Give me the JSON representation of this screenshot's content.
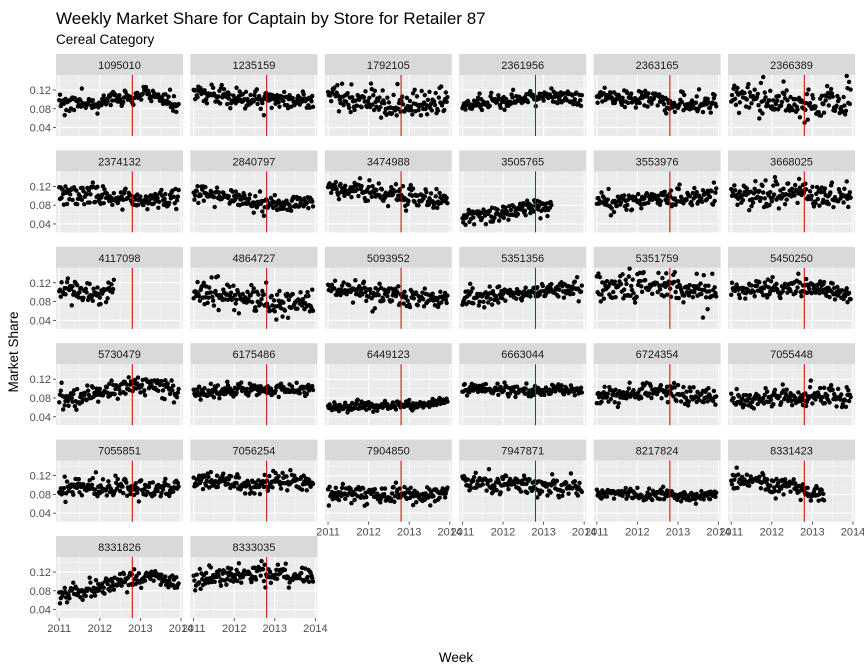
{
  "chart_data": {
    "type": "scatter",
    "title": "Weekly Market Share for Captain by Store for Retailer 87",
    "subtitle": "Cereal Category",
    "xlabel": "Week",
    "ylabel": "Market Share",
    "x_ticks": [
      "2011",
      "2012",
      "2013",
      "2014"
    ],
    "y_ticks": [
      "0.04",
      "0.08",
      "0.12"
    ],
    "xlim": [
      2010.92,
      2014.05
    ],
    "ylim": [
      0.022,
      0.152
    ],
    "vline_x": 2012.8,
    "point_color": "#000000",
    "vline_color": "#cc0000",
    "panel_bg": "#ebebeb",
    "strip_bg": "#d9d9d9",
    "grid": true,
    "ncol": 6,
    "panels": [
      {
        "store": "1095010",
        "trend": [
          0.095,
          0.092,
          0.1,
          0.112,
          0.085
        ],
        "noise": 0.009,
        "end": 2013.95
      },
      {
        "store": "1235159",
        "trend": [
          0.118,
          0.108,
          0.1,
          0.098,
          0.095
        ],
        "noise": 0.01,
        "end": 2013.95
      },
      {
        "store": "1792105",
        "trend": [
          0.105,
          0.098,
          0.085,
          0.088,
          0.095
        ],
        "noise": 0.016,
        "end": 2013.95
      },
      {
        "store": "2361956",
        "trend": [
          0.088,
          0.094,
          0.1,
          0.108,
          0.095
        ],
        "noise": 0.008,
        "end": 2013.95
      },
      {
        "store": "2363165",
        "trend": [
          0.105,
          0.102,
          0.098,
          0.09,
          0.095
        ],
        "noise": 0.01,
        "end": 2013.95
      },
      {
        "store": "2366389",
        "trend": [
          0.108,
          0.098,
          0.095,
          0.088,
          0.098
        ],
        "noise": 0.018,
        "end": 2013.95
      },
      {
        "store": "2374132",
        "trend": [
          0.102,
          0.098,
          0.095,
          0.09,
          0.092
        ],
        "noise": 0.011,
        "end": 2013.95
      },
      {
        "store": "2840797",
        "trend": [
          0.108,
          0.098,
          0.085,
          0.078,
          0.088
        ],
        "noise": 0.01,
        "end": 2013.95
      },
      {
        "store": "3474988",
        "trend": [
          0.118,
          0.112,
          0.105,
          0.098,
          0.092
        ],
        "noise": 0.011,
        "end": 2013.95
      },
      {
        "store": "3505765",
        "trend": [
          0.055,
          0.062,
          0.072,
          0.078,
          0.072
        ],
        "noise": 0.01,
        "end": 2013.2
      },
      {
        "store": "3553976",
        "trend": [
          0.085,
          0.088,
          0.095,
          0.092,
          0.105
        ],
        "noise": 0.01,
        "end": 2013.95
      },
      {
        "store": "3668025",
        "trend": [
          0.105,
          0.102,
          0.11,
          0.1,
          0.098
        ],
        "noise": 0.014,
        "end": 2013.95
      },
      {
        "store": "4117098",
        "trend": [
          0.108,
          0.1,
          0.095,
          0.09,
          0.09
        ],
        "noise": 0.011,
        "end": 2012.35
      },
      {
        "store": "4864727",
        "trend": [
          0.095,
          0.095,
          0.085,
          0.07,
          0.085
        ],
        "noise": 0.015,
        "end": 2013.95
      },
      {
        "store": "5093952",
        "trend": [
          0.105,
          0.1,
          0.095,
          0.085,
          0.088
        ],
        "noise": 0.01,
        "end": 2013.95
      },
      {
        "store": "5351356",
        "trend": [
          0.088,
          0.092,
          0.098,
          0.108,
          0.105
        ],
        "noise": 0.009,
        "end": 2013.95
      },
      {
        "store": "5351759",
        "trend": [
          0.11,
          0.112,
          0.118,
          0.105,
          0.095
        ],
        "noise": 0.016,
        "end": 2013.95
      },
      {
        "store": "5450250",
        "trend": [
          0.105,
          0.108,
          0.112,
          0.11,
          0.09
        ],
        "noise": 0.009,
        "end": 2013.95
      },
      {
        "store": "5730479",
        "trend": [
          0.078,
          0.088,
          0.1,
          0.108,
          0.09
        ],
        "noise": 0.011,
        "end": 2013.95
      },
      {
        "store": "6175486",
        "trend": [
          0.092,
          0.094,
          0.096,
          0.098,
          0.098
        ],
        "noise": 0.007,
        "end": 2013.95
      },
      {
        "store": "6449123",
        "trend": [
          0.058,
          0.062,
          0.064,
          0.066,
          0.076
        ],
        "noise": 0.005,
        "end": 2013.95
      },
      {
        "store": "6663044",
        "trend": [
          0.1,
          0.098,
          0.095,
          0.096,
          0.098
        ],
        "noise": 0.006,
        "end": 2013.95
      },
      {
        "store": "6724354",
        "trend": [
          0.085,
          0.088,
          0.095,
          0.085,
          0.085
        ],
        "noise": 0.01,
        "end": 2013.95
      },
      {
        "store": "7055448",
        "trend": [
          0.078,
          0.08,
          0.082,
          0.085,
          0.088
        ],
        "noise": 0.011,
        "end": 2013.95
      },
      {
        "store": "7055851",
        "trend": [
          0.092,
          0.095,
          0.095,
          0.088,
          0.095
        ],
        "noise": 0.01,
        "end": 2013.95
      },
      {
        "store": "7056254",
        "trend": [
          0.112,
          0.108,
          0.1,
          0.11,
          0.098
        ],
        "noise": 0.01,
        "end": 2013.95
      },
      {
        "store": "7904850",
        "trend": [
          0.085,
          0.082,
          0.078,
          0.075,
          0.085
        ],
        "noise": 0.009,
        "end": 2013.95
      },
      {
        "store": "7947871",
        "trend": [
          0.108,
          0.102,
          0.1,
          0.098,
          0.088
        ],
        "noise": 0.01,
        "end": 2013.95
      },
      {
        "store": "8217824",
        "trend": [
          0.08,
          0.08,
          0.078,
          0.075,
          0.078
        ],
        "noise": 0.007,
        "end": 2013.95
      },
      {
        "store": "8331423",
        "trend": [
          0.115,
          0.108,
          0.095,
          0.078,
          0.09
        ],
        "noise": 0.012,
        "end": 2013.3
      },
      {
        "store": "8331826",
        "trend": [
          0.078,
          0.082,
          0.098,
          0.112,
          0.09
        ],
        "noise": 0.009,
        "end": 2013.95
      },
      {
        "store": "8333035",
        "trend": [
          0.105,
          0.112,
          0.115,
          0.118,
          0.108
        ],
        "noise": 0.01,
        "end": 2013.95
      }
    ]
  }
}
